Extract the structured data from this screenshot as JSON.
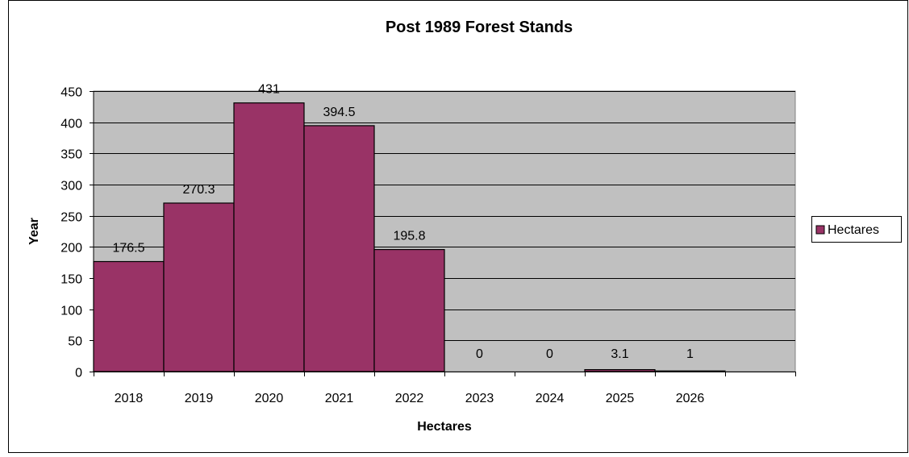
{
  "chart_data": {
    "type": "bar",
    "title": "Post 1989 Forest Stands",
    "xlabel": "Hectares",
    "ylabel": "Year",
    "categories": [
      "2018",
      "2019",
      "2020",
      "2021",
      "2022",
      "2023",
      "2024",
      "2025",
      "2026",
      ""
    ],
    "series": [
      {
        "name": "Hectares",
        "values": [
          176.5,
          270.3,
          431,
          394.5,
          195.8,
          0,
          0,
          3.1,
          1,
          null
        ],
        "labels": [
          "176.5",
          "270.3",
          "431",
          "394.5",
          "195.8",
          "0",
          "0",
          "3.1",
          "1",
          ""
        ]
      }
    ],
    "ylim": [
      0,
      450
    ],
    "yticks": [
      0,
      50,
      100,
      150,
      200,
      250,
      300,
      350,
      400,
      450
    ],
    "grid": true,
    "legend": "right",
    "colors": {
      "bar": "#993366",
      "plot_background": "#c0c0c0",
      "gridline": "#000000"
    }
  }
}
